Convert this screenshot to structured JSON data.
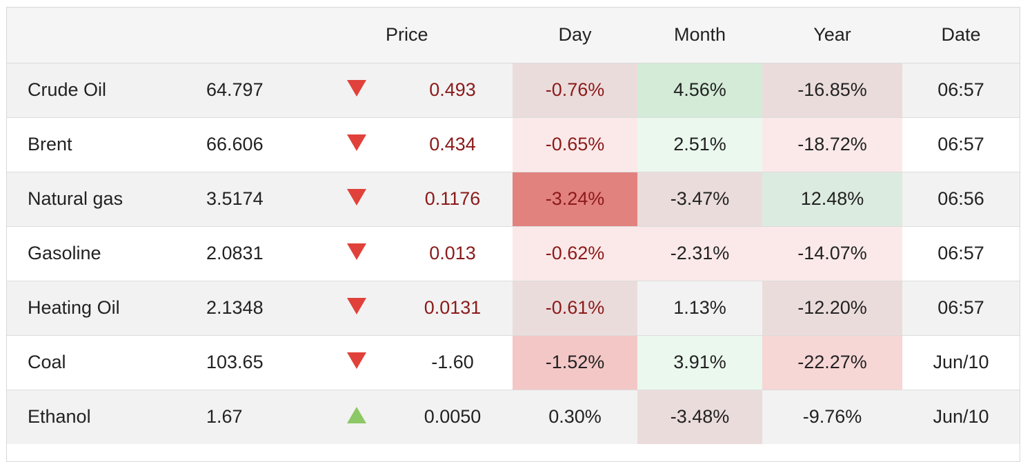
{
  "header": {
    "price": "Price",
    "day": "Day",
    "month": "Month",
    "year": "Year",
    "date": "Date"
  },
  "rows": [
    {
      "name": "Crude Oil",
      "price": "64.797",
      "direction": "down",
      "change": "0.493",
      "change_color": "#8b1a1a",
      "day": "-0.76%",
      "day_color": "#8b1a1a",
      "day_bg": "#ebdcdc",
      "month": "4.56%",
      "month_color": "#222222",
      "month_bg": "#d3ebd7",
      "year": "-16.85%",
      "year_color": "#222222",
      "year_bg": "#ebdcdc",
      "date": "06:57"
    },
    {
      "name": "Brent",
      "price": "66.606",
      "direction": "down",
      "change": "0.434",
      "change_color": "#8b1a1a",
      "day": "-0.65%",
      "day_color": "#8b1a1a",
      "day_bg": "#fbe9e9",
      "month": "2.51%",
      "month_color": "#222222",
      "month_bg": "#ebf8ee",
      "year": "-18.72%",
      "year_color": "#222222",
      "year_bg": "#fbe9e9",
      "date": "06:57"
    },
    {
      "name": "Natural gas",
      "price": "3.5174",
      "direction": "down",
      "change": "0.1176",
      "change_color": "#8b1a1a",
      "day": "-3.24%",
      "day_color": "#8b1a1a",
      "day_bg": "#e2827e",
      "month": "-3.47%",
      "month_color": "#222222",
      "month_bg": "#ebdcdc",
      "year": "12.48%",
      "year_color": "#222222",
      "year_bg": "#dcebe0",
      "date": "06:56"
    },
    {
      "name": "Gasoline",
      "price": "2.0831",
      "direction": "down",
      "change": "0.013",
      "change_color": "#8b1a1a",
      "day": "-0.62%",
      "day_color": "#8b1a1a",
      "day_bg": "#fbe9e9",
      "month": "-2.31%",
      "month_color": "#222222",
      "month_bg": "#fbe9e9",
      "year": "-14.07%",
      "year_color": "#222222",
      "year_bg": "#fbe9e9",
      "date": "06:57"
    },
    {
      "name": "Heating Oil",
      "price": "2.1348",
      "direction": "down",
      "change": "0.0131",
      "change_color": "#8b1a1a",
      "day": "-0.61%",
      "day_color": "#8b1a1a",
      "day_bg": "#ebdcdc",
      "month": "1.13%",
      "month_color": "#222222",
      "month_bg": "#f2f2f2",
      "year": "-12.20%",
      "year_color": "#222222",
      "year_bg": "#ebdcdc",
      "date": "06:57"
    },
    {
      "name": "Coal",
      "price": "103.65",
      "direction": "down",
      "change": "-1.60",
      "change_color": "#222222",
      "day": "-1.52%",
      "day_color": "#222222",
      "day_bg": "#f4c7c7",
      "month": "3.91%",
      "month_color": "#222222",
      "month_bg": "#ebf8ee",
      "year": "-22.27%",
      "year_color": "#222222",
      "year_bg": "#f7d6d6",
      "date": "Jun/10"
    },
    {
      "name": "Ethanol",
      "price": "1.67",
      "direction": "up",
      "change": "0.0050",
      "change_color": "#222222",
      "day": "0.30%",
      "day_color": "#222222",
      "day_bg": "#f2f2f2",
      "month": "-3.48%",
      "month_color": "#222222",
      "month_bg": "#ebdcdc",
      "year": "-9.76%",
      "year_color": "#222222",
      "year_bg": "#f2f2f2",
      "date": "Jun/10"
    }
  ],
  "icons": {
    "down": "triangle-down-icon",
    "up": "triangle-up-icon",
    "down_color": "#e0413a",
    "up_color": "#8cc865"
  }
}
